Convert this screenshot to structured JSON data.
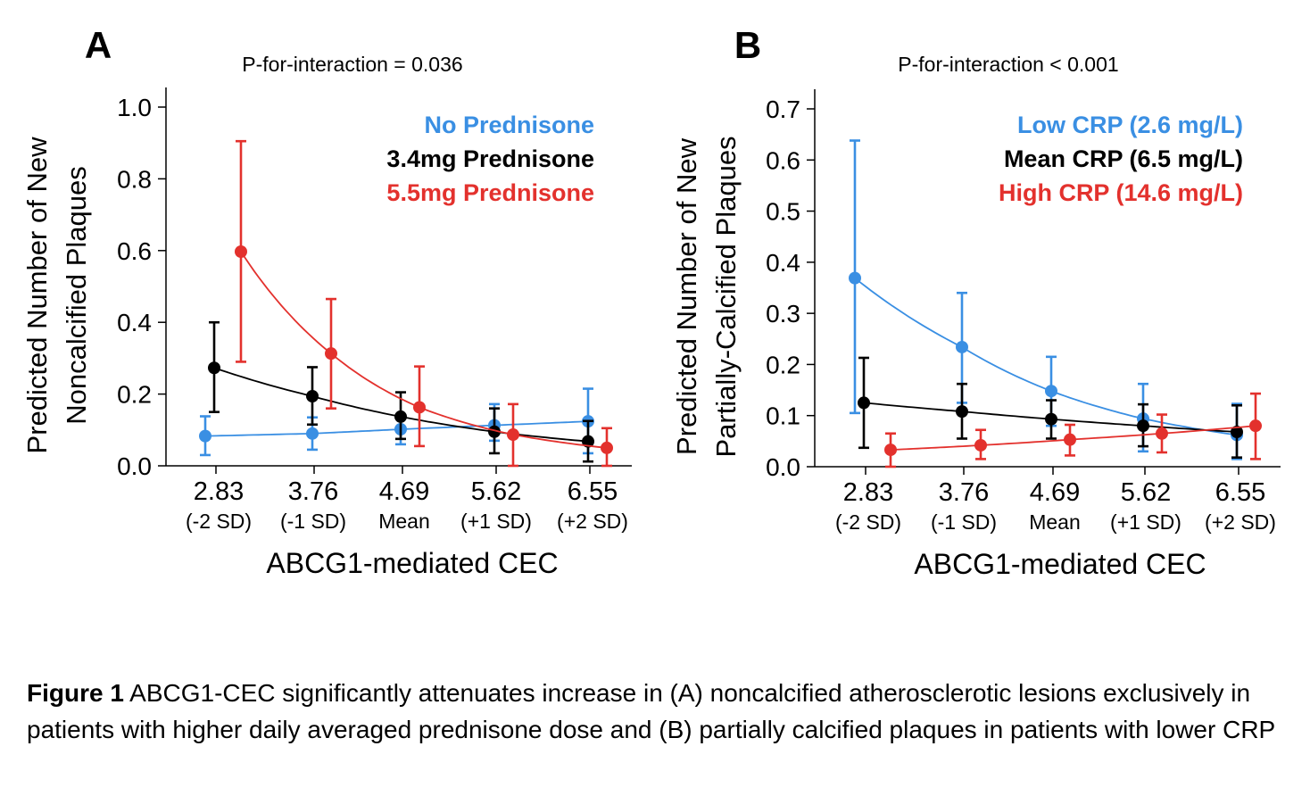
{
  "colors": {
    "blue": "#3a8fe3",
    "black": "#000000",
    "red": "#e3312d"
  },
  "caption": {
    "label": "Figure 1",
    "text": "ABCG1-CEC significantly attenuates increase in (A) noncalcified atherosclerotic lesions exclusively in patients with higher daily averaged prednisone dose and (B) partially calcified plaques in patients with lower CRP"
  },
  "chart_data": [
    {
      "type": "scatter",
      "panel_label": "A",
      "annotation": "P-for-interaction = 0.036",
      "xlabel": "ABCG1-mediated CEC",
      "ylabel": [
        "Predicted Number of New",
        "Noncalcified Plaques"
      ],
      "categories": [
        "2.83",
        "3.76",
        "4.69",
        "5.62",
        "6.55"
      ],
      "category_sublabels": [
        "(-2 SD)",
        "(-1 SD)",
        "Mean",
        "(+1 SD)",
        "(+2 SD)"
      ],
      "ylim": [
        0,
        1.0
      ],
      "yticks": [
        "0.0",
        "0.2",
        "0.4",
        "0.6",
        "0.8",
        "1.0"
      ],
      "legend_position": "top-right",
      "series": [
        {
          "name": "No Prednisone",
          "color": "blue",
          "values": [
            0.083,
            0.09,
            0.102,
            0.113,
            0.124
          ],
          "lower": [
            0.03,
            0.045,
            0.06,
            0.07,
            0.035
          ],
          "upper": [
            0.138,
            0.135,
            0.14,
            0.172,
            0.215
          ]
        },
        {
          "name": "3.4mg Prednisone",
          "color": "black",
          "values": [
            0.273,
            0.194,
            0.137,
            0.095,
            0.068
          ],
          "lower": [
            0.15,
            0.115,
            0.075,
            0.035,
            0.012
          ],
          "upper": [
            0.4,
            0.275,
            0.205,
            0.16,
            0.125
          ]
        },
        {
          "name": "5.5mg Prednisone",
          "color": "red",
          "values": [
            0.597,
            0.313,
            0.163,
            0.087,
            0.05
          ],
          "lower": [
            0.29,
            0.16,
            0.055,
            0.0,
            0.0
          ],
          "upper": [
            0.905,
            0.465,
            0.277,
            0.172,
            0.105
          ]
        }
      ]
    },
    {
      "type": "scatter",
      "panel_label": "B",
      "annotation": "P-for-interaction < 0.001",
      "xlabel": "ABCG1-mediated CEC",
      "ylabel": [
        "Predicted Number of New",
        "Partially-Calcified Plaques"
      ],
      "categories": [
        "2.83",
        "3.76",
        "4.69",
        "5.62",
        "6.55"
      ],
      "category_sublabels": [
        "(-2 SD)",
        "(-1 SD)",
        "Mean",
        "(+1 SD)",
        "(+2 SD)"
      ],
      "ylim": [
        0,
        0.7
      ],
      "yticks": [
        "0.0",
        "0.1",
        "0.2",
        "0.3",
        "0.4",
        "0.5",
        "0.6",
        "0.7"
      ],
      "legend_position": "top-right",
      "series": [
        {
          "name": "Low CRP (2.6 mg/L)",
          "color": "blue",
          "values": [
            0.369,
            0.234,
            0.148,
            0.094,
            0.062
          ],
          "lower": [
            0.105,
            0.125,
            0.08,
            0.03,
            0.015
          ],
          "upper": [
            0.638,
            0.34,
            0.215,
            0.162,
            0.123
          ]
        },
        {
          "name": "Mean CRP (6.5 mg/L)",
          "color": "black",
          "values": [
            0.125,
            0.108,
            0.093,
            0.08,
            0.068
          ],
          "lower": [
            0.037,
            0.055,
            0.055,
            0.04,
            0.018
          ],
          "upper": [
            0.213,
            0.162,
            0.13,
            0.122,
            0.12
          ]
        },
        {
          "name": "High CRP (14.6 mg/L)",
          "color": "red",
          "values": [
            0.033,
            0.042,
            0.053,
            0.065,
            0.08
          ],
          "lower": [
            0.0,
            0.015,
            0.022,
            0.028,
            0.015
          ],
          "upper": [
            0.065,
            0.072,
            0.082,
            0.102,
            0.143
          ]
        }
      ]
    }
  ]
}
